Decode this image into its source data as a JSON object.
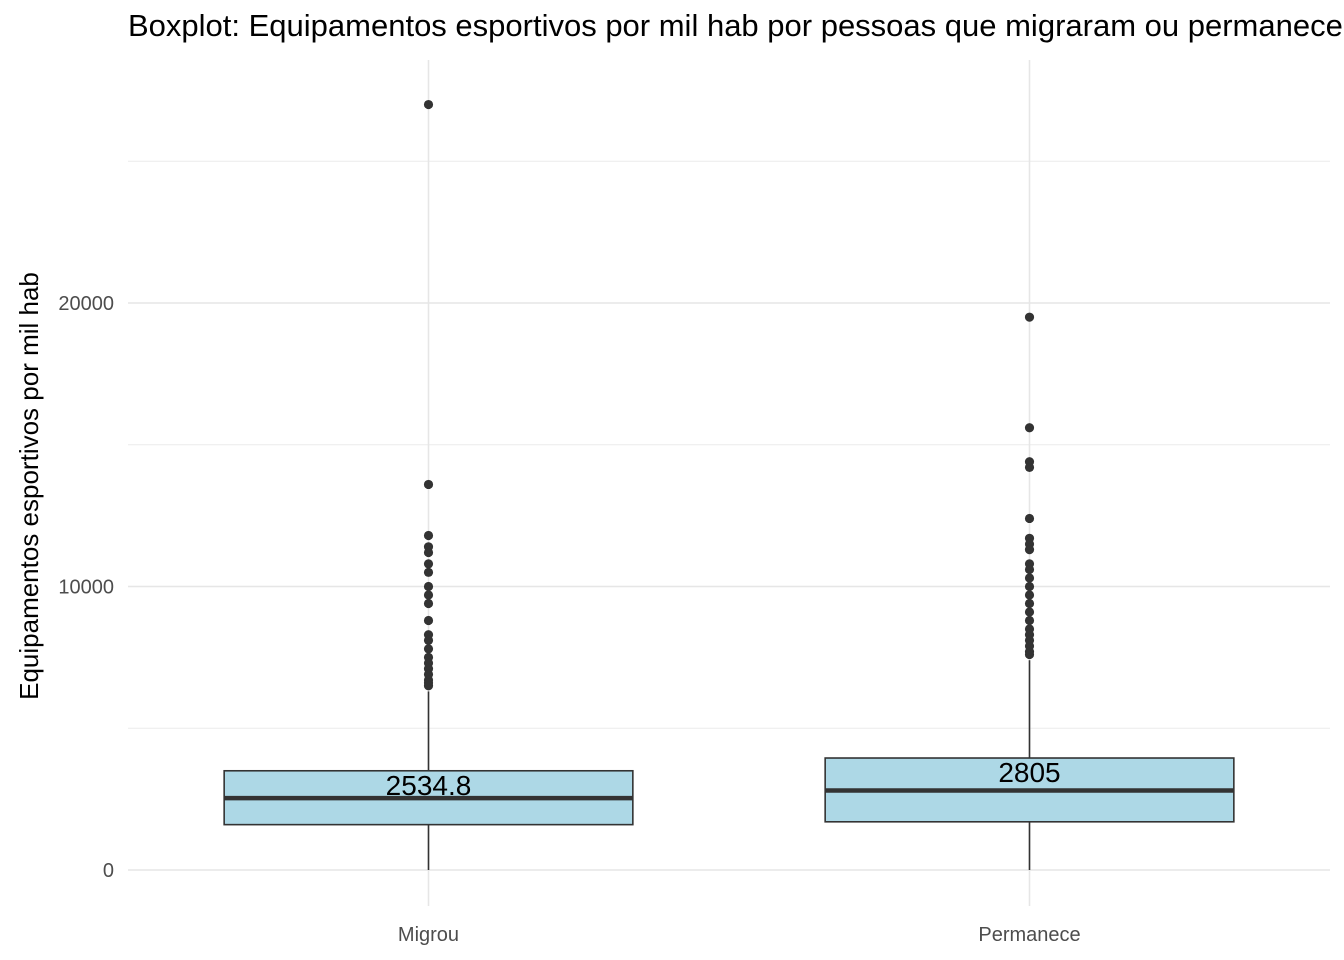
{
  "chart_data": {
    "type": "boxplot",
    "title": "Boxplot: Equipamentos esportivos por mil hab por pessoas que migraram ou permanecem",
    "xlabel": "",
    "ylabel": "Equipamentos esportivos por mil hab",
    "ylim": [
      -1500,
      28500
    ],
    "y_ticks": [
      0,
      10000,
      20000
    ],
    "y_tick_labels": [
      "0",
      "10000",
      "20000"
    ],
    "grid": true,
    "legend": "none",
    "box_fill": "#add8e6",
    "stroke_color": "#333333",
    "categories": [
      "Migrou",
      "Permanece"
    ],
    "boxes": [
      {
        "category": "Migrou",
        "whisker_low": 0,
        "q1": 1600,
        "median": 2534.8,
        "q3": 3500,
        "whisker_high": 6300,
        "median_label": "2534.8",
        "outliers": [
          27000,
          13600,
          11800,
          11400,
          11200,
          10800,
          10500,
          10000,
          9700,
          9400,
          8800,
          8300,
          8100,
          7800,
          7500,
          7300,
          7100,
          6900,
          6700,
          6600,
          6500
        ]
      },
      {
        "category": "Permanece",
        "whisker_low": 0,
        "q1": 1700,
        "median": 2805,
        "q3": 3950,
        "whisker_high": 7400,
        "median_label": "2805",
        "outliers": [
          19500,
          15600,
          14400,
          14200,
          12400,
          11700,
          11500,
          11300,
          10800,
          10600,
          10300,
          10000,
          9700,
          9400,
          9100,
          8800,
          8500,
          8300,
          8100,
          7900,
          7700,
          7600
        ]
      }
    ]
  }
}
